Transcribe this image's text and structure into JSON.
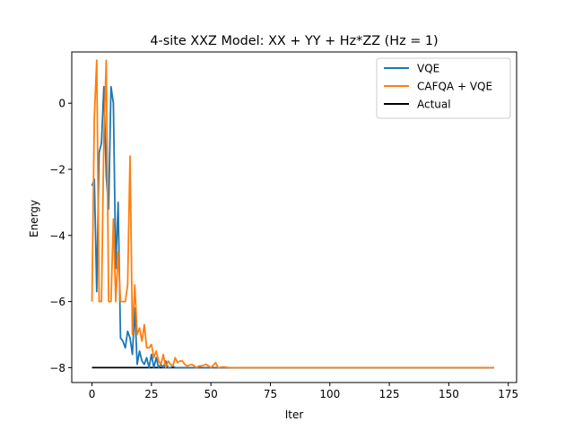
{
  "chart_data": {
    "type": "line",
    "title": "4-site XXZ Model: XX + YY + Hz*ZZ (Hz = 1)",
    "xlabel": "Iter",
    "ylabel": "Energy",
    "xlim": [
      -8.5,
      178.5
    ],
    "ylim": [
      -8.45,
      1.55
    ],
    "xticks": [
      0,
      25,
      50,
      75,
      100,
      125,
      150,
      175
    ],
    "yticks": [
      -8,
      -6,
      -4,
      -2,
      0
    ],
    "ytick_labels": [
      "−8",
      "−6",
      "−4",
      "−2",
      "0"
    ],
    "grid": false,
    "legend_position": "top-right",
    "series": [
      {
        "name": "VQE",
        "color": "#1f77b4",
        "x": [
          0,
          1,
          2,
          3,
          4,
          5,
          6,
          7,
          8,
          9,
          10,
          11,
          12,
          13,
          14,
          15,
          16,
          17,
          18,
          19,
          20,
          21,
          22,
          23,
          24,
          25,
          26,
          27,
          28,
          29,
          30,
          31,
          32,
          33,
          34,
          35,
          36,
          38,
          40,
          45,
          50,
          60,
          80,
          100,
          125,
          150,
          169
        ],
        "y": [
          -2.5,
          -2.3,
          -5.7,
          -1.5,
          -1.2,
          0.5,
          -2.2,
          -3.2,
          0.5,
          0.0,
          -5.0,
          -3.0,
          -7.1,
          -7.2,
          -7.4,
          -6.9,
          -7.1,
          -7.6,
          -6.2,
          -7.9,
          -7.5,
          -7.8,
          -7.9,
          -7.7,
          -8.0,
          -7.6,
          -8.0,
          -7.7,
          -8.0,
          -7.9,
          -8.0,
          -7.8,
          -8.0,
          -8.0,
          -7.95,
          -8.0,
          -8.0,
          -8.0,
          -8.0,
          -8.0,
          -8.0,
          -8.0,
          -8.0,
          -8.0,
          -8.0,
          -8.0,
          -8.0
        ]
      },
      {
        "name": "CAFQA + VQE",
        "color": "#ff7f0e",
        "x": [
          0,
          1,
          2,
          3,
          4,
          5,
          6,
          7,
          8,
          9,
          10,
          11,
          12,
          13,
          14,
          15,
          16,
          17,
          18,
          19,
          20,
          21,
          22,
          23,
          24,
          25,
          26,
          27,
          28,
          29,
          30,
          31,
          32,
          33,
          34,
          35,
          36,
          37,
          38,
          39,
          40,
          42,
          44,
          45,
          46,
          48,
          50,
          52,
          53,
          55,
          58,
          60,
          70,
          80,
          100,
          125,
          150,
          169
        ],
        "y": [
          -6.0,
          -0.4,
          1.3,
          -6.0,
          -6.0,
          -1.0,
          1.3,
          -6.0,
          -6.0,
          -3.5,
          -6.0,
          -4.5,
          -6.0,
          -6.0,
          -6.0,
          -5.5,
          -1.6,
          -7.0,
          -5.5,
          -7.0,
          -6.8,
          -7.2,
          -6.7,
          -7.4,
          -7.4,
          -7.3,
          -7.7,
          -7.5,
          -7.8,
          -7.9,
          -7.6,
          -8.0,
          -7.8,
          -7.9,
          -7.95,
          -7.7,
          -7.85,
          -7.8,
          -7.8,
          -7.9,
          -7.95,
          -7.9,
          -8.0,
          -7.95,
          -7.95,
          -7.9,
          -8.0,
          -7.85,
          -8.0,
          -7.98,
          -8.0,
          -8.0,
          -8.0,
          -8.0,
          -8.0,
          -8.0,
          -8.0,
          -8.0
        ]
      },
      {
        "name": "Actual",
        "color": "#000000",
        "x": [
          0,
          169
        ],
        "y": [
          -8.0,
          -8.0
        ]
      }
    ]
  }
}
